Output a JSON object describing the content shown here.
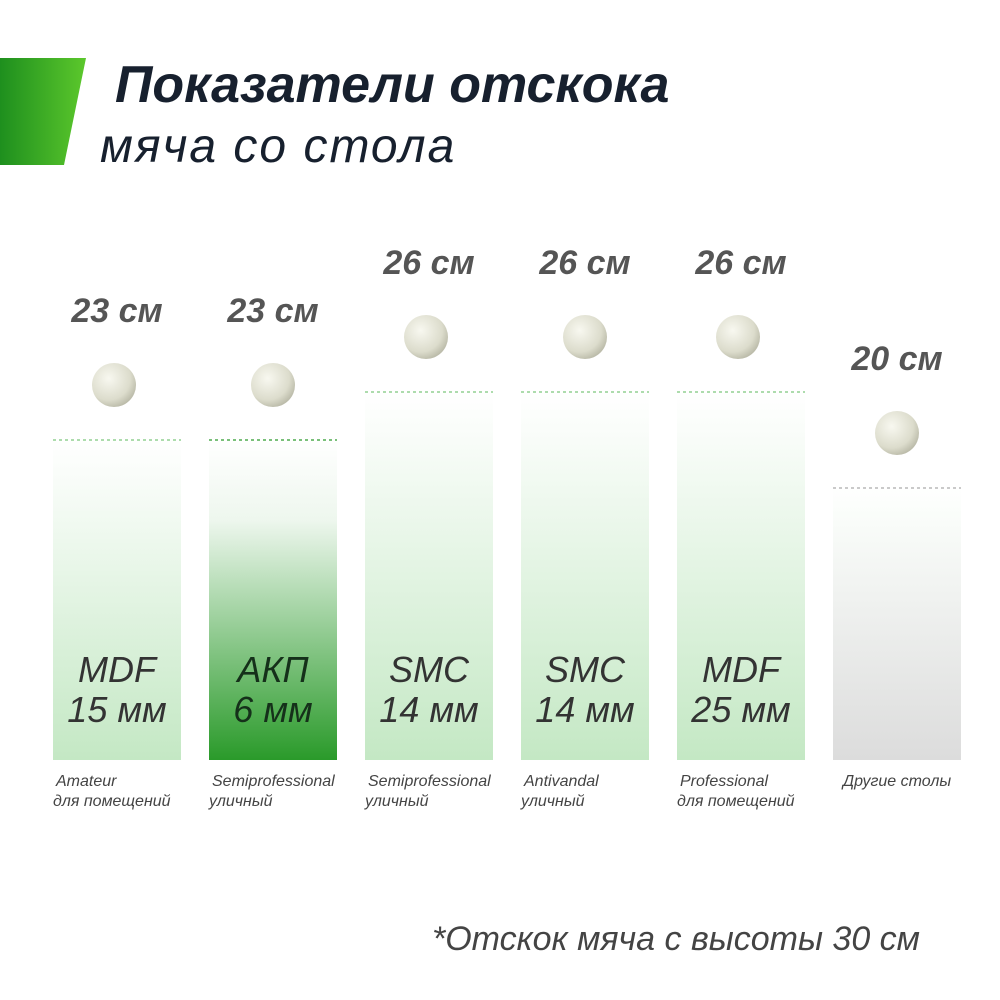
{
  "chart_data": {
    "type": "bar",
    "title": "Показатели отскока",
    "subtitle": "мяча со стола",
    "footnote": "*Отскок мяча с высоты 30 см",
    "categories": [
      "Amateur",
      "Semiprofessional",
      "Semiprofessional",
      "Antivandal",
      "Professional",
      "Другие столы"
    ],
    "category_notes": [
      "для помещений",
      "уличный",
      "уличный",
      "уличный",
      "для помещений",
      null
    ],
    "materials": [
      "MDF",
      "АКП",
      "SMC",
      "SMC",
      "MDF",
      null
    ],
    "thickness": [
      "15 мм",
      "6 мм",
      "14 мм",
      "14 мм",
      "25 мм",
      null
    ],
    "values": [
      23,
      23,
      26,
      26,
      26,
      20
    ],
    "value_labels": [
      "23 см",
      "23 см",
      "26 см",
      "26 см",
      "26 см",
      "20 см"
    ],
    "colors": [
      "#c4e8c4",
      "#2a9a2a",
      "#c4e8c4",
      "#c4e8c4",
      "#c4e8c4",
      "#dcdcdc"
    ],
    "ylim": [
      3,
      33
    ]
  }
}
